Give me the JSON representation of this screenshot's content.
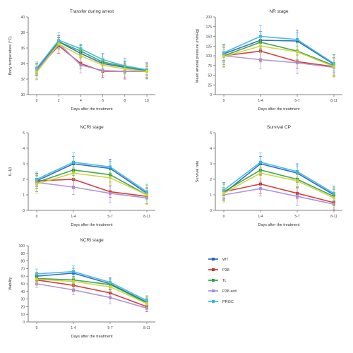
{
  "chart_data": [
    {
      "type": "line",
      "title": "Transfer during arrest",
      "xlabel": "Days after the treatment",
      "ylabel": "Body temperature (°C)",
      "x": [
        0,
        2,
        4,
        6,
        8,
        10
      ],
      "x_ticks": [
        "0",
        "2",
        "4",
        "6",
        "8",
        "10"
      ],
      "ylim": [
        30,
        40
      ],
      "y_ticks": [
        30,
        32,
        34,
        36,
        38,
        40
      ],
      "series": [
        {
          "name": "WT",
          "color": "#1f5fbf",
          "values": [
            33.3,
            36.8,
            35.3,
            34.0,
            33.5,
            33.1
          ]
        },
        {
          "name": "P38",
          "color": "#d42a2a",
          "values": [
            33.2,
            36.3,
            34.0,
            33.0,
            33.0,
            33.0
          ]
        },
        {
          "name": "Tc",
          "color": "#2e9e3a",
          "values": [
            33.0,
            36.8,
            35.6,
            34.2,
            33.6,
            33.0
          ]
        },
        {
          "name": "P38 anti",
          "color": "#a78bd6",
          "values": [
            33.1,
            36.6,
            33.8,
            33.1,
            33.0,
            33.0
          ]
        },
        {
          "name": "PRGC",
          "color": "#36b6e0",
          "values": [
            33.4,
            37.0,
            35.9,
            34.5,
            33.7,
            33.2
          ]
        },
        {
          "name": "",
          "color": "#c8d434",
          "values": [
            32.9,
            36.5,
            35.0,
            33.8,
            33.3,
            33.0
          ]
        }
      ]
    },
    {
      "type": "line",
      "title": "NR stage",
      "xlabel": "Days after the treatment",
      "ylabel": "Mean arterial pressure (mmHg)",
      "x": [
        0,
        1,
        2,
        3
      ],
      "x_ticks": [
        "0",
        "1-4",
        "5-7",
        "8-11"
      ],
      "ylim": [
        0,
        200
      ],
      "y_ticks": [
        0,
        25,
        50,
        75,
        100,
        125,
        150,
        175,
        200
      ],
      "series": [
        {
          "name": "WT",
          "color": "#1f5fbf",
          "values": [
            105,
            140,
            138,
            78
          ]
        },
        {
          "name": "P38",
          "color": "#d42a2a",
          "values": [
            100,
            112,
            85,
            72
          ]
        },
        {
          "name": "Tc",
          "color": "#2e9e3a",
          "values": [
            100,
            135,
            112,
            75
          ]
        },
        {
          "name": "P38 anti",
          "color": "#a78bd6",
          "values": [
            100,
            90,
            82,
            70
          ]
        },
        {
          "name": "PRGC",
          "color": "#36b6e0",
          "values": [
            108,
            150,
            142,
            80
          ]
        },
        {
          "name": "",
          "color": "#c8d434",
          "values": [
            98,
            125,
            110,
            72
          ]
        }
      ]
    },
    {
      "type": "line",
      "title": "NCRI stage",
      "xlabel": "Days after the treatment",
      "ylabel": "IL-1β",
      "x": [
        0,
        1,
        2,
        3
      ],
      "x_ticks": [
        "0",
        "1-4",
        "5-7",
        "8-11"
      ],
      "ylim": [
        0,
        5
      ],
      "y_ticks": [
        0,
        1,
        2,
        3,
        4,
        5
      ],
      "series": [
        {
          "name": "WT",
          "color": "#1f5fbf",
          "values": [
            1.9,
            3.0,
            2.7,
            1.1
          ]
        },
        {
          "name": "P38",
          "color": "#d42a2a",
          "values": [
            1.9,
            2.0,
            1.2,
            0.9
          ]
        },
        {
          "name": "Tc",
          "color": "#2e9e3a",
          "values": [
            1.8,
            2.6,
            2.3,
            1.0
          ]
        },
        {
          "name": "P38 anti",
          "color": "#a78bd6",
          "values": [
            1.8,
            1.5,
            1.1,
            0.8
          ]
        },
        {
          "name": "PRGC",
          "color": "#36b6e0",
          "values": [
            2.0,
            3.1,
            2.8,
            1.2
          ]
        },
        {
          "name": "",
          "color": "#c8d434",
          "values": [
            1.7,
            2.4,
            2.1,
            1.0
          ]
        }
      ]
    },
    {
      "type": "line",
      "title": "Survival CP",
      "xlabel": "Days after the treatment",
      "ylabel": "Survival rate",
      "x": [
        0,
        1,
        2,
        3
      ],
      "x_ticks": [
        "0",
        "1-4",
        "5-7",
        "8-11"
      ],
      "ylim": [
        0,
        5
      ],
      "y_ticks": [
        0,
        1,
        2,
        3,
        4,
        5
      ],
      "series": [
        {
          "name": "WT",
          "color": "#1f5fbf",
          "values": [
            1.1,
            3.0,
            2.4,
            1.0
          ]
        },
        {
          "name": "P38",
          "color": "#d42a2a",
          "values": [
            1.2,
            1.7,
            1.1,
            0.5
          ]
        },
        {
          "name": "Tc",
          "color": "#2e9e3a",
          "values": [
            1.2,
            2.6,
            2.0,
            0.9
          ]
        },
        {
          "name": "P38 anti",
          "color": "#a78bd6",
          "values": [
            1.0,
            1.4,
            0.9,
            0.4
          ]
        },
        {
          "name": "PRGC",
          "color": "#36b6e0",
          "values": [
            1.3,
            3.1,
            2.5,
            1.1
          ]
        },
        {
          "name": "",
          "color": "#c8d434",
          "values": [
            1.1,
            2.4,
            1.9,
            0.8
          ]
        }
      ]
    },
    {
      "type": "line",
      "title": "NCRI stage",
      "xlabel": "Days after the treatment",
      "ylabel": "Viability",
      "x": [
        0,
        1,
        2,
        3
      ],
      "x_ticks": [
        "0",
        "1-4",
        "5-7",
        "8-11"
      ],
      "ylim": [
        0,
        100
      ],
      "y_ticks": [
        0,
        10,
        20,
        30,
        40,
        50,
        60,
        70,
        80,
        90,
        100
      ],
      "series": [
        {
          "name": "WT",
          "color": "#1f5fbf",
          "values": [
            60,
            64,
            50,
            26
          ]
        },
        {
          "name": "P38",
          "color": "#d42a2a",
          "values": [
            55,
            48,
            38,
            20
          ]
        },
        {
          "name": "Tc",
          "color": "#2e9e3a",
          "values": [
            57,
            55,
            49,
            25
          ]
        },
        {
          "name": "P38 anti",
          "color": "#a78bd6",
          "values": [
            50,
            42,
            32,
            18
          ]
        },
        {
          "name": "PRGC",
          "color": "#36b6e0",
          "values": [
            63,
            66,
            52,
            28
          ]
        },
        {
          "name": "",
          "color": "#c8d434",
          "values": [
            56,
            53,
            46,
            24
          ]
        }
      ]
    }
  ],
  "legend": {
    "placement": "bottom-right",
    "items": [
      {
        "label": "WT",
        "color": "#1f5fbf"
      },
      {
        "label": "P38",
        "color": "#d42a2a"
      },
      {
        "label": "Tc",
        "color": "#2e9e3a"
      },
      {
        "label": "P38 anti",
        "color": "#a78bd6"
      },
      {
        "label": "PRGC",
        "color": "#36b6e0"
      }
    ]
  }
}
